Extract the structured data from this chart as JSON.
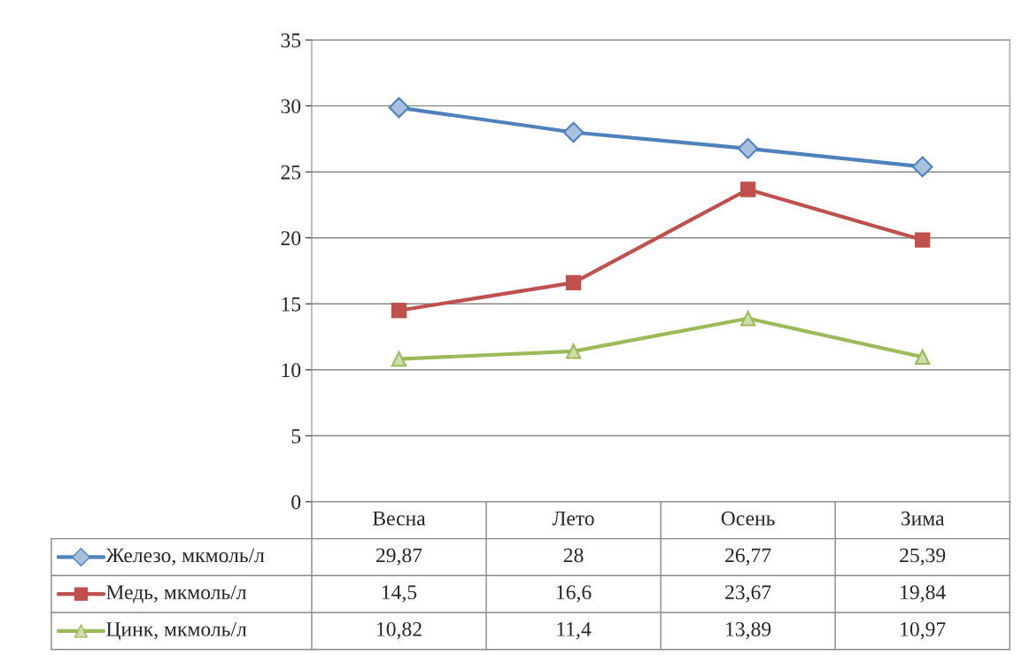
{
  "chart_data": {
    "type": "line",
    "categories": [
      "Весна",
      "Лето",
      "Осень",
      "Зима"
    ],
    "series": [
      {
        "name": "Железо, мкмоль/л",
        "color": "#4f81bd",
        "marker": "diamond",
        "values": [
          29.87,
          28,
          26.77,
          25.39
        ],
        "value_labels": [
          "29,87",
          "28",
          "26,77",
          "25,39"
        ]
      },
      {
        "name": "Медь, мкмоль/л",
        "color": "#c0504d",
        "marker": "square",
        "values": [
          14.5,
          16.6,
          23.67,
          19.84
        ],
        "value_labels": [
          "14,5",
          "16,6",
          "23,67",
          "19,84"
        ]
      },
      {
        "name": "Цинк, мкмоль/л",
        "color": "#9bbb59",
        "marker": "triangle",
        "values": [
          10.82,
          11.4,
          13.89,
          10.97
        ],
        "value_labels": [
          "10,82",
          "11,4",
          "13,89",
          "10,97"
        ]
      }
    ],
    "ylim": [
      0,
      35
    ],
    "yticks": [
      0,
      5,
      10,
      15,
      20,
      25,
      30,
      35
    ],
    "grid": "y",
    "legend": "bottom",
    "line_style": "solid"
  }
}
